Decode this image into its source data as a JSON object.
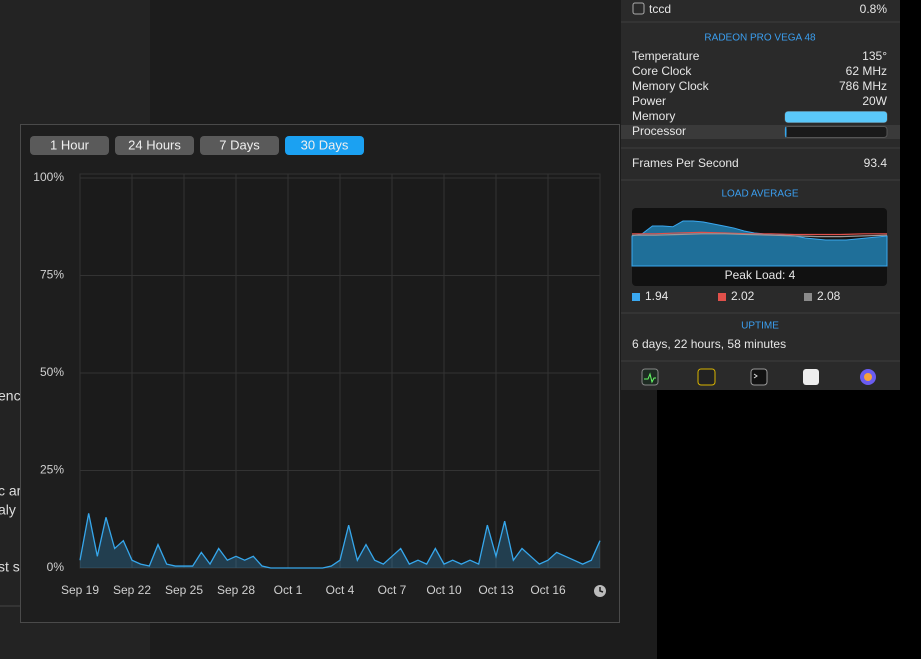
{
  "background_fragments": [
    "enc",
    "c ar",
    "aly",
    "st s"
  ],
  "range_buttons": {
    "labels": [
      "1 Hour",
      "24 Hours",
      "7 Days",
      "30 Days"
    ],
    "active": 3
  },
  "chart_data": {
    "type": "line",
    "xlim": [
      0,
      30
    ],
    "xticks": [
      {
        "value": 0,
        "label": "Sep 19"
      },
      {
        "value": 3,
        "label": "Sep 22"
      },
      {
        "value": 6,
        "label": "Sep 25"
      },
      {
        "value": 9,
        "label": "Sep 28"
      },
      {
        "value": 12,
        "label": "Oct 1"
      },
      {
        "value": 15,
        "label": "Oct 4"
      },
      {
        "value": 18,
        "label": "Oct 7"
      },
      {
        "value": 21,
        "label": "Oct 10"
      },
      {
        "value": 24,
        "label": "Oct 13"
      },
      {
        "value": 27,
        "label": "Oct 16"
      }
    ],
    "ylim": [
      0,
      100
    ],
    "yticks": [
      {
        "value": 0,
        "label": "0%"
      },
      {
        "value": 25,
        "label": "25%"
      },
      {
        "value": 50,
        "label": "50%"
      },
      {
        "value": 75,
        "label": "75%"
      },
      {
        "value": 100,
        "label": "100%"
      }
    ],
    "grid": true,
    "x": [
      0,
      0.5,
      1,
      1.5,
      2,
      2.5,
      3,
      3.5,
      4,
      4.5,
      5,
      5.5,
      6,
      6.5,
      7,
      7.5,
      8,
      8.5,
      9,
      9.5,
      10,
      10.5,
      11,
      11.5,
      12,
      12.5,
      13,
      13.5,
      14,
      14.5,
      15,
      15.5,
      16,
      16.5,
      17,
      17.5,
      18,
      18.5,
      19,
      19.5,
      20,
      20.5,
      21,
      21.5,
      22,
      22.5,
      23,
      23.5,
      24,
      24.5,
      25,
      25.5,
      26,
      26.5,
      27,
      27.5,
      28,
      28.5,
      29,
      29.5,
      30
    ],
    "series": [
      {
        "color": "#36a7ec",
        "values": [
          2,
          14,
          3,
          13,
          5,
          7,
          2,
          1,
          0.5,
          6,
          1,
          0.5,
          0.5,
          0.5,
          4,
          1,
          5,
          2,
          3,
          2,
          3,
          0.5,
          0,
          0,
          0,
          0,
          0,
          0,
          0,
          0.5,
          2,
          11,
          2,
          6,
          2,
          1,
          3,
          5,
          1,
          2,
          1,
          5,
          1,
          2,
          1,
          2,
          1,
          11,
          3,
          12,
          2,
          5,
          3,
          1,
          2,
          4,
          3,
          2,
          1,
          2,
          7
        ]
      }
    ]
  },
  "menu": {
    "process": {
      "name": "tccd",
      "value": "0.8%"
    },
    "gpu": {
      "title": "RADEON PRO VEGA 48",
      "rows": [
        [
          "Temperature",
          "135°"
        ],
        [
          "Core Clock",
          "62 MHz"
        ],
        [
          "Memory Clock",
          "786 MHz"
        ],
        [
          "Power",
          "20W"
        ]
      ],
      "bars": [
        {
          "label": "Memory",
          "percent": 100,
          "color": "#5ac8fa"
        },
        {
          "label": "Processor",
          "percent": 1,
          "color": "#36a7ec"
        }
      ],
      "fps_label": "Frames Per Second",
      "fps": "93.4"
    },
    "load_average": {
      "title": "LOAD AVERAGE",
      "ylim": [
        0,
        4
      ],
      "peak_label": "Peak Load: 4",
      "area": {
        "color": "#1f6f99",
        "values": [
          2.14,
          2.3,
          2.86,
          2.86,
          2.8,
          3.21,
          3.21,
          3.14,
          3.0,
          2.86,
          2.71,
          2.5,
          2.36,
          2.29,
          2.29,
          2.21,
          2.14,
          2.0,
          1.93,
          1.86,
          1.86,
          1.86,
          1.93,
          2.0,
          2.07,
          2.14
        ]
      },
      "lines": [
        {
          "color": "#e0504a",
          "values": [
            2.3,
            2.3,
            2.36,
            2.4,
            2.36,
            2.3,
            2.3,
            2.25,
            2.25,
            2.25,
            2.3,
            2.3
          ]
        },
        {
          "color": "#9a9a9a",
          "values": [
            2.2,
            2.2,
            2.25,
            2.3,
            2.3,
            2.25,
            2.2,
            2.15,
            2.1,
            2.1,
            2.15,
            2.2
          ]
        }
      ],
      "legend": [
        {
          "color": "#3aa8f0",
          "value": 1.94
        },
        {
          "color": "#e0504a",
          "value": 2.02
        },
        {
          "color": "#8a8a8a",
          "value": 2.08
        }
      ]
    },
    "uptime": {
      "title": "UPTIME",
      "text": "6 days, 22 hours, 58 minutes"
    }
  }
}
